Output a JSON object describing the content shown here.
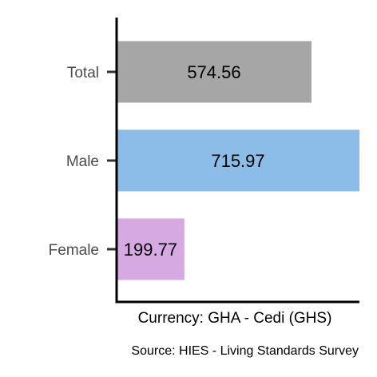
{
  "chart_data": {
    "type": "bar",
    "orientation": "horizontal",
    "categories": [
      "Total",
      "Male",
      "Female"
    ],
    "values": [
      574.56,
      715.97,
      199.77
    ],
    "value_labels": [
      "574.56",
      "715.97",
      "199.77"
    ],
    "colors": [
      "#a6a6a6",
      "#8bbde8",
      "#d7a9e3"
    ],
    "xlabel": "Currency: GHA - Cedi (GHS)",
    "caption": "Source:  HIES - Living Standards Survey",
    "xlim": [
      0,
      715.97
    ],
    "grid": false,
    "legend": "none"
  }
}
